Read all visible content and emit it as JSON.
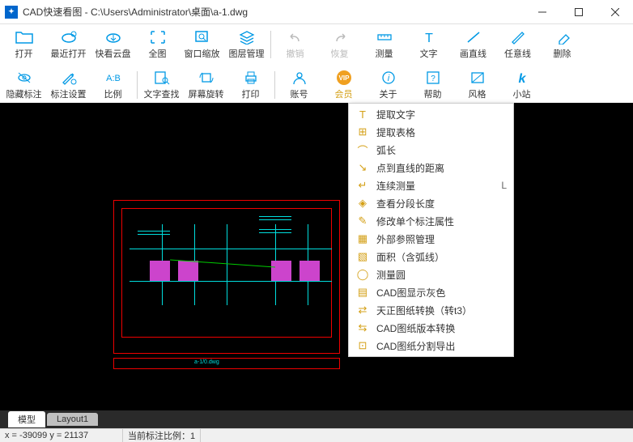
{
  "title": "CAD快速看图 - C:\\Users\\Administrator\\桌面\\a-1.dwg",
  "colors": {
    "primary": "#0099e5",
    "gold": "#d4a017",
    "canvas": "#000000",
    "red": "#ee0000",
    "cyan": "#00dddd",
    "green": "#00cc00",
    "magenta": "#cc44cc"
  },
  "toolbar_rows": [
    [
      {
        "key": "open",
        "label": "打开",
        "icon": "folder"
      },
      {
        "key": "recent",
        "label": "最近打开",
        "icon": "cloud-time"
      },
      {
        "key": "cloud",
        "label": "快看云盘",
        "icon": "cloud"
      },
      {
        "key": "full",
        "label": "全图",
        "icon": "fullscreen"
      },
      {
        "key": "zoom",
        "label": "窗口缩放",
        "icon": "zoom"
      },
      {
        "key": "layers",
        "label": "图层管理",
        "icon": "layers"
      },
      {
        "sep": true
      },
      {
        "key": "undo",
        "label": "撤销",
        "icon": "undo",
        "disabled": true
      },
      {
        "key": "redo",
        "label": "恢复",
        "icon": "redo",
        "disabled": true
      },
      {
        "key": "measure",
        "label": "测量",
        "icon": "ruler"
      },
      {
        "key": "text",
        "label": "文字",
        "icon": "text"
      },
      {
        "key": "line",
        "label": "画直线",
        "icon": "line"
      },
      {
        "key": "freeline",
        "label": "任意线",
        "icon": "pen"
      },
      {
        "key": "delete",
        "label": "删除",
        "icon": "eraser"
      }
    ],
    [
      {
        "key": "hide",
        "label": "隐藏标注",
        "icon": "eye-off"
      },
      {
        "key": "annot",
        "label": "标注设置",
        "icon": "annot"
      },
      {
        "key": "scale",
        "label": "比例",
        "icon": "ratio"
      },
      {
        "sep": true
      },
      {
        "key": "findtext",
        "label": "文字查找",
        "icon": "find"
      },
      {
        "key": "rotate",
        "label": "屏幕旋转",
        "icon": "rotate"
      },
      {
        "key": "print",
        "label": "打印",
        "icon": "print"
      },
      {
        "sep": true
      },
      {
        "key": "account",
        "label": "账号",
        "icon": "user"
      },
      {
        "key": "vip",
        "label": "会员",
        "icon": "vip",
        "gold": true
      },
      {
        "key": "about",
        "label": "关于",
        "icon": "info"
      },
      {
        "key": "help",
        "label": "帮助",
        "icon": "help"
      },
      {
        "key": "style",
        "label": "风格",
        "icon": "style"
      },
      {
        "key": "xiaozhan",
        "label": "小站",
        "icon": "k"
      }
    ]
  ],
  "context_menu": [
    {
      "label": "提取文字",
      "icon": "T"
    },
    {
      "label": "提取表格",
      "icon": "⊞"
    },
    {
      "label": "弧长",
      "icon": "⌒"
    },
    {
      "label": "点到直线的距离",
      "icon": "↘"
    },
    {
      "label": "连续测量",
      "icon": "↵",
      "shortcut": "L"
    },
    {
      "label": "查看分段长度",
      "icon": "◈"
    },
    {
      "label": "修改单个标注属性",
      "icon": "✎"
    },
    {
      "label": "外部参照管理",
      "icon": "▦"
    },
    {
      "label": "面积（含弧线）",
      "icon": "▧"
    },
    {
      "label": "测量圆",
      "icon": "◯"
    },
    {
      "label": "CAD图显示灰色",
      "icon": "▤"
    },
    {
      "label": "天正图纸转换（转t3）",
      "icon": "⇄"
    },
    {
      "label": "CAD图纸版本转换",
      "icon": "⇆"
    },
    {
      "label": "CAD图纸分割导出",
      "icon": "⊡"
    }
  ],
  "tabs": [
    {
      "label": "模型",
      "active": true
    },
    {
      "label": "Layout1",
      "active": false
    }
  ],
  "status": {
    "coords": "x = -39099 y = 21137",
    "scale": "当前标注比例：1"
  }
}
